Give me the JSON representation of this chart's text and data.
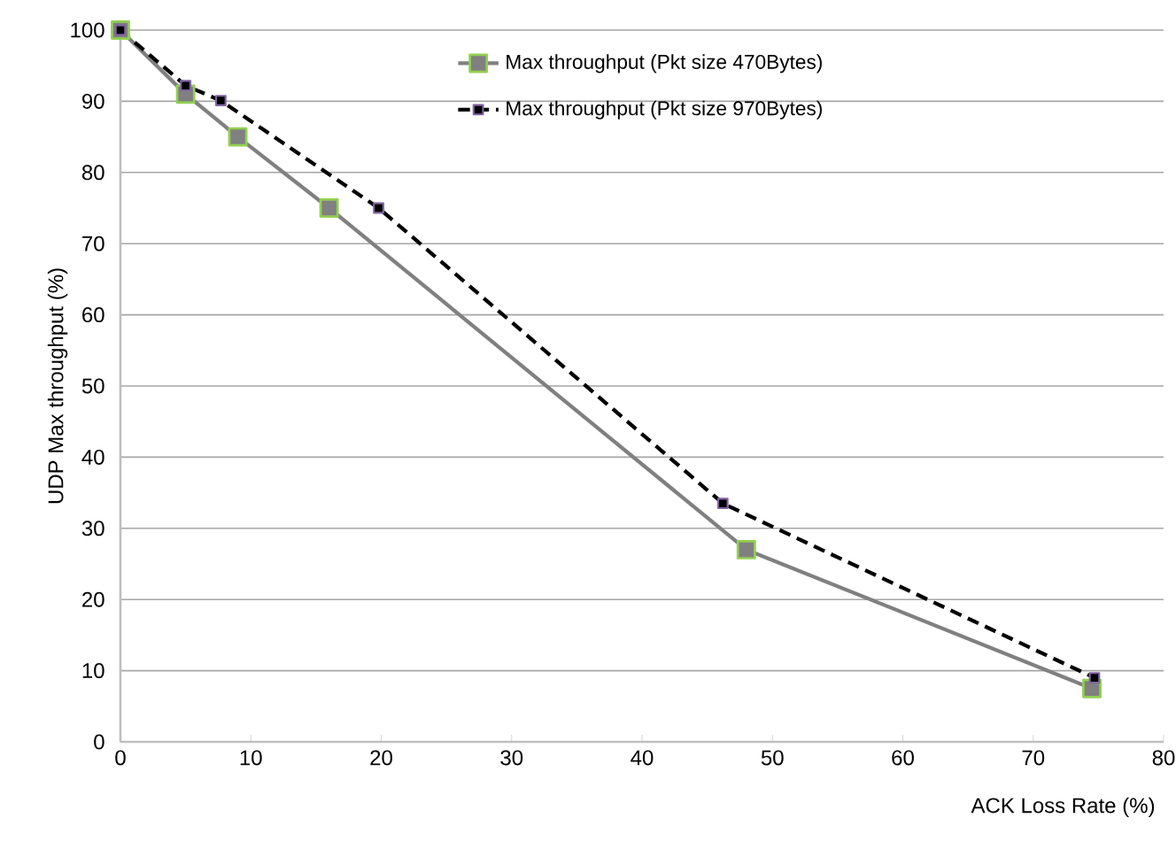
{
  "chart_data": {
    "type": "line",
    "xlabel": "ACK Loss Rate (%)",
    "ylabel": "UDP Max throughput (%)",
    "xlim": [
      0,
      80
    ],
    "xticks": [
      0,
      10,
      20,
      30,
      40,
      50,
      60,
      70,
      80
    ],
    "ylim": [
      0,
      100
    ],
    "yticks": [
      0,
      10,
      20,
      30,
      40,
      50,
      60,
      70,
      80,
      90,
      100
    ],
    "grid": "y",
    "legend": "top",
    "series": [
      {
        "name": "Max throughput (Pkt size 470Bytes)",
        "color": "#808080",
        "marker": "square",
        "line_style": "solid",
        "x": [
          0,
          5,
          9,
          16,
          48,
          74.5
        ],
        "values": [
          100,
          91,
          85,
          75,
          27,
          7.5
        ]
      },
      {
        "name": "Max throughput (Pkt size 970Bytes)",
        "color": "#000000",
        "marker": "square",
        "line_style": "dashed",
        "x": [
          0,
          5,
          7.7,
          19.8,
          46.2,
          74.7
        ],
        "values": [
          100,
          92.2,
          90.1,
          75,
          33.5,
          9
        ]
      }
    ]
  }
}
